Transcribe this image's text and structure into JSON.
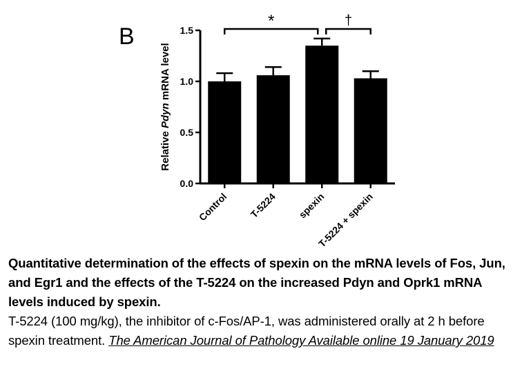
{
  "panel_label": "B",
  "chart_data": {
    "type": "bar",
    "categories": [
      "Control",
      "T-5224",
      "spexin",
      "T-5224 + spexin"
    ],
    "values": [
      1.0,
      1.06,
      1.35,
      1.03
    ],
    "errors": [
      0.08,
      0.08,
      0.07,
      0.07
    ],
    "ylabel_prefix": "Relative ",
    "ylabel_italic": "Pdyn",
    "ylabel_suffix": " mRNA level",
    "ylim": [
      0,
      1.5
    ],
    "yticks": [
      0.0,
      0.5,
      1.0,
      1.5
    ],
    "ytick_labels": [
      "0.0",
      "0.5",
      "1.0",
      "1.5"
    ],
    "bar_color": "#000000",
    "annotations": [
      {
        "from": 0,
        "to": 2,
        "symbol": "*"
      },
      {
        "from": 2,
        "to": 3,
        "symbol": "†"
      }
    ]
  },
  "caption": {
    "title": "Quantitative determination of the effects of spexin on the mRNA levels of Fos, Jun, and Egr1 and the effects of the T-5224 on the increased Pdyn and Oprk1 mRNA levels induced by spexin.",
    "body": "T-5224 (100 mg/kg), the inhibitor of c-Fos/AP-1, was administered orally at 2 h before spexin treatment. ",
    "citation": "The American Journal of Pathology Available online 19 January 2019"
  }
}
